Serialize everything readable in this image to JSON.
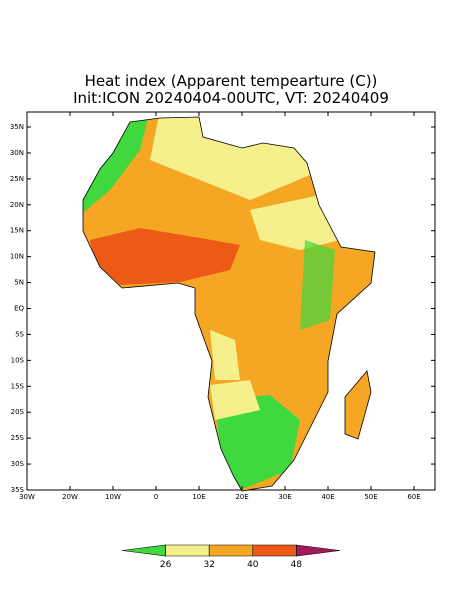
{
  "title": {
    "line1": "Heat index (Apparent tempearture (C))",
    "line2": "Init:ICON 20240404-00UTC, VT: 20240409"
  },
  "map": {
    "lat_labels": [
      "35N",
      "30N",
      "25N",
      "20N",
      "15N",
      "10N",
      "5N",
      "EQ",
      "5S",
      "10S",
      "15S",
      "20S",
      "25S",
      "30S",
      "35S"
    ],
    "lon_labels": [
      "30W",
      "20W",
      "10W",
      "0",
      "10E",
      "20E",
      "30E",
      "40E",
      "50E",
      "60E"
    ]
  },
  "colorbar": {
    "labels": [
      26,
      32,
      40,
      48
    ],
    "colors": [
      "#3fd83f",
      "#f6f08c",
      "#f5a623",
      "#ec5a16",
      "#a3195b"
    ]
  }
}
